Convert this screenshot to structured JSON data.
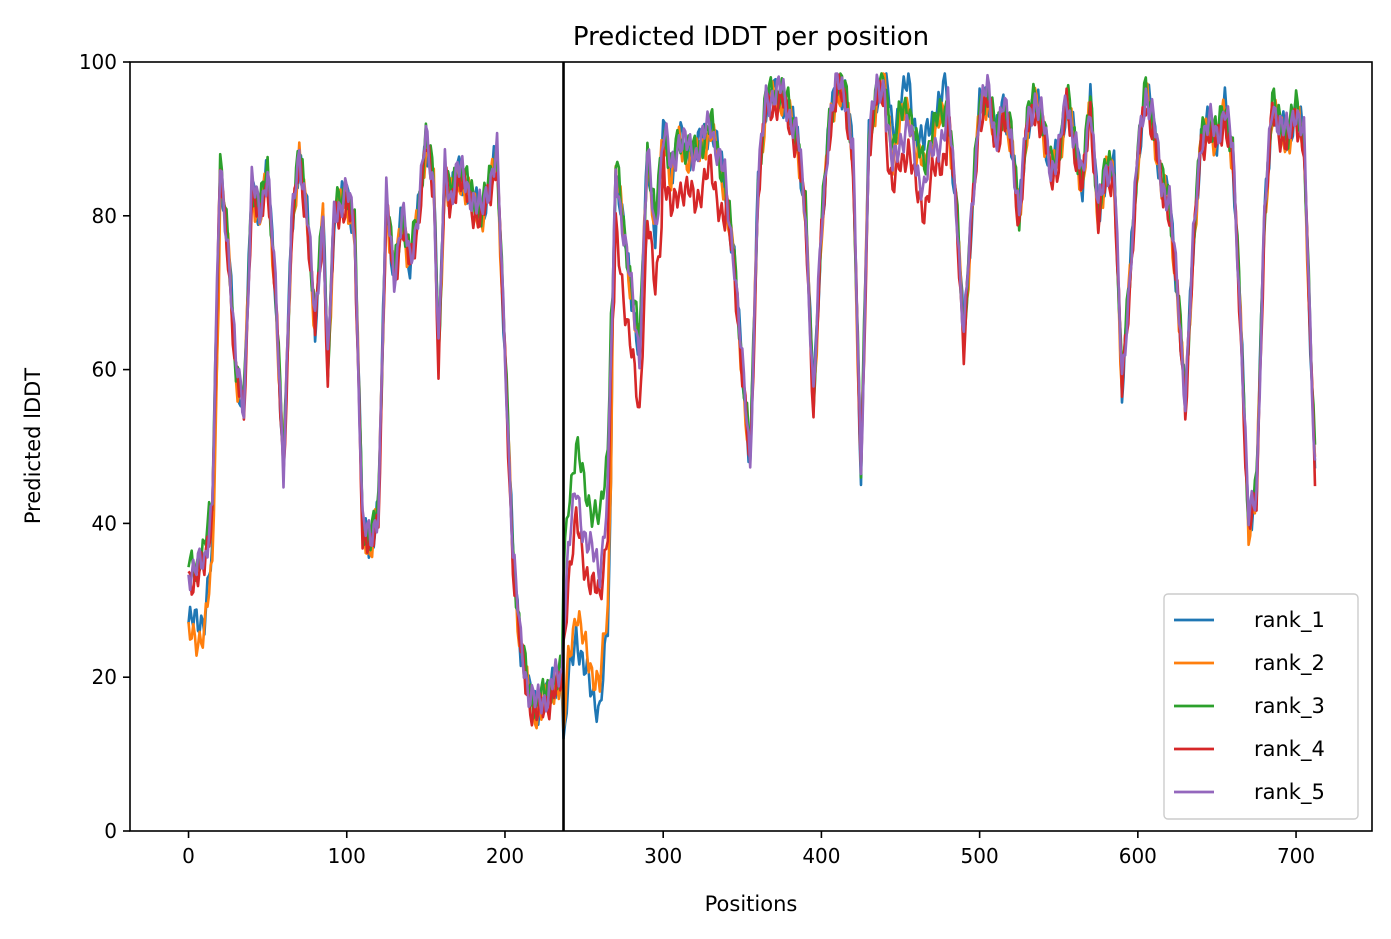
{
  "chart_data": {
    "type": "line",
    "title": "Predicted lDDT per position",
    "xlabel": "Positions",
    "ylabel": "Predicted lDDT",
    "xlim": [
      -37,
      748
    ],
    "ylim": [
      0,
      100
    ],
    "xticks": [
      0,
      100,
      200,
      300,
      400,
      500,
      600,
      700
    ],
    "yticks": [
      0,
      20,
      40,
      60,
      80,
      100
    ],
    "xtick_labels": [
      "0",
      "100",
      "200",
      "300",
      "400",
      "500",
      "600",
      "700"
    ],
    "ytick_labels": [
      "0",
      "20",
      "40",
      "60",
      "80",
      "100"
    ],
    "grid": false,
    "legend_position": "lower-right",
    "vline_x": 237,
    "vline_color": "#000000",
    "series": [
      {
        "name": "rank_1",
        "color": "#1f77b4"
      },
      {
        "name": "rank_2",
        "color": "#ff7f0e"
      },
      {
        "name": "rank_3",
        "color": "#2ca02c"
      },
      {
        "name": "rank_4",
        "color": "#d62728"
      },
      {
        "name": "rank_5",
        "color": "#9467bd"
      }
    ],
    "base_profile": [
      [
        0,
        33
      ],
      [
        5,
        33
      ],
      [
        10,
        34
      ],
      [
        15,
        42
      ],
      [
        20,
        86
      ],
      [
        25,
        76
      ],
      [
        30,
        60
      ],
      [
        35,
        55
      ],
      [
        40,
        84
      ],
      [
        45,
        80
      ],
      [
        50,
        86
      ],
      [
        55,
        70
      ],
      [
        60,
        47
      ],
      [
        65,
        78
      ],
      [
        70,
        88
      ],
      [
        75,
        80
      ],
      [
        80,
        66
      ],
      [
        85,
        80
      ],
      [
        88,
        60
      ],
      [
        92,
        80
      ],
      [
        100,
        83
      ],
      [
        105,
        78
      ],
      [
        110,
        40
      ],
      [
        115,
        37
      ],
      [
        120,
        42
      ],
      [
        125,
        82
      ],
      [
        130,
        72
      ],
      [
        135,
        80
      ],
      [
        140,
        74
      ],
      [
        145,
        80
      ],
      [
        150,
        90
      ],
      [
        155,
        84
      ],
      [
        158,
        62
      ],
      [
        162,
        86
      ],
      [
        165,
        82
      ],
      [
        170,
        86
      ],
      [
        175,
        84
      ],
      [
        180,
        82
      ],
      [
        185,
        80
      ],
      [
        190,
        84
      ],
      [
        195,
        88
      ],
      [
        200,
        62
      ],
      [
        205,
        36
      ],
      [
        210,
        24
      ],
      [
        215,
        18
      ],
      [
        220,
        16
      ],
      [
        225,
        17
      ],
      [
        230,
        19
      ],
      [
        236,
        20
      ],
      [
        240,
        33
      ],
      [
        245,
        40
      ],
      [
        250,
        35
      ],
      [
        255,
        32
      ],
      [
        260,
        30
      ],
      [
        265,
        40
      ],
      [
        270,
        86
      ],
      [
        275,
        78
      ],
      [
        280,
        70
      ],
      [
        285,
        62
      ],
      [
        290,
        88
      ],
      [
        295,
        78
      ],
      [
        300,
        90
      ],
      [
        305,
        84
      ],
      [
        310,
        88
      ],
      [
        320,
        86
      ],
      [
        330,
        90
      ],
      [
        340,
        82
      ],
      [
        345,
        74
      ],
      [
        350,
        60
      ],
      [
        355,
        48
      ],
      [
        360,
        84
      ],
      [
        365,
        95
      ],
      [
        375,
        96
      ],
      [
        385,
        90
      ],
      [
        390,
        80
      ],
      [
        395,
        56
      ],
      [
        400,
        78
      ],
      [
        405,
        92
      ],
      [
        410,
        97
      ],
      [
        415,
        96
      ],
      [
        420,
        88
      ],
      [
        425,
        46
      ],
      [
        430,
        90
      ],
      [
        435,
        96
      ],
      [
        440,
        97
      ],
      [
        445,
        88
      ],
      [
        450,
        92
      ],
      [
        455,
        94
      ],
      [
        460,
        88
      ],
      [
        465,
        86
      ],
      [
        470,
        90
      ],
      [
        480,
        94
      ],
      [
        485,
        82
      ],
      [
        490,
        64
      ],
      [
        495,
        80
      ],
      [
        500,
        94
      ],
      [
        505,
        96
      ],
      [
        510,
        90
      ],
      [
        515,
        94
      ],
      [
        520,
        90
      ],
      [
        525,
        80
      ],
      [
        530,
        92
      ],
      [
        535,
        95
      ],
      [
        540,
        92
      ],
      [
        545,
        86
      ],
      [
        550,
        88
      ],
      [
        555,
        95
      ],
      [
        560,
        90
      ],
      [
        565,
        84
      ],
      [
        570,
        95
      ],
      [
        575,
        80
      ],
      [
        580,
        86
      ],
      [
        585,
        86
      ],
      [
        590,
        58
      ],
      [
        595,
        72
      ],
      [
        600,
        88
      ],
      [
        605,
        96
      ],
      [
        610,
        92
      ],
      [
        615,
        84
      ],
      [
        620,
        82
      ],
      [
        625,
        70
      ],
      [
        630,
        56
      ],
      [
        635,
        76
      ],
      [
        640,
        90
      ],
      [
        645,
        92
      ],
      [
        650,
        90
      ],
      [
        655,
        94
      ],
      [
        660,
        88
      ],
      [
        665,
        66
      ],
      [
        670,
        40
      ],
      [
        675,
        44
      ],
      [
        680,
        80
      ],
      [
        685,
        94
      ],
      [
        690,
        92
      ],
      [
        695,
        90
      ],
      [
        700,
        94
      ],
      [
        705,
        90
      ],
      [
        710,
        58
      ],
      [
        712,
        48
      ]
    ]
  }
}
